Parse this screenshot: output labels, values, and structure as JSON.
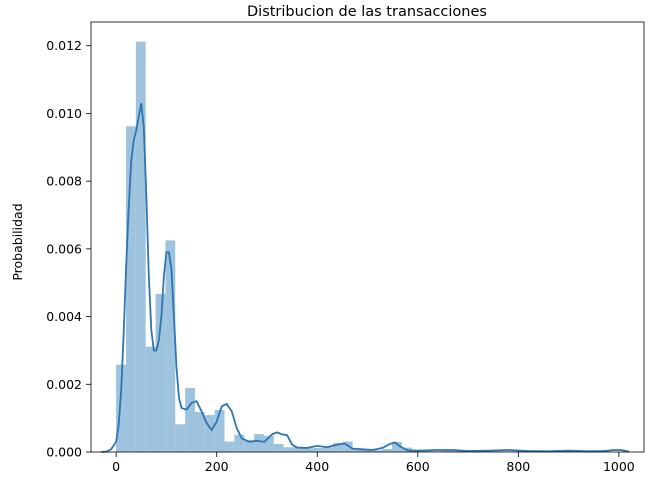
{
  "chart_data": {
    "type": "histogram_with_kde",
    "title": "Distribucion de las transacciones",
    "xlabel": "",
    "ylabel": "Probabilidad",
    "xlim": [
      -50,
      1050
    ],
    "ylim": [
      0,
      0.0127
    ],
    "xticks": [
      0,
      200,
      400,
      600,
      800,
      1000
    ],
    "xtick_labels": [
      "0",
      "200",
      "400",
      "600",
      "800",
      "1000"
    ],
    "yticks": [
      0,
      0.002,
      0.004,
      0.006,
      0.008,
      0.01,
      0.012
    ],
    "ytick_labels": [
      "0.000",
      "0.002",
      "0.004",
      "0.006",
      "0.008",
      "0.010",
      "0.012"
    ],
    "bin_width": 19.6,
    "bin_start": 0,
    "bar_values": [
      0.00258,
      0.00962,
      0.01212,
      0.00311,
      0.00467,
      0.00625,
      0.00082,
      0.00189,
      0.00118,
      0.00109,
      0.00124,
      0.00031,
      0.00051,
      0.00035,
      0.00053,
      0.00048,
      0.00024,
      0.00014,
      0.00016,
      0.00011,
      0.00012,
      0.00014,
      0.00026,
      0.00031,
      9e-05,
      7e-05,
      5e-05,
      9e-05,
      0.0003,
      0.00013,
      4e-05,
      3e-05,
      2e-05,
      4e-05,
      3e-05,
      2e-05,
      2e-05,
      3e-05,
      2e-05,
      2e-05,
      2e-05,
      1e-05,
      1e-05,
      2e-05,
      1e-05,
      2e-05,
      1e-05,
      1e-05,
      1e-05,
      2e-05
    ],
    "kde_points": [
      [
        -30,
        0.0
      ],
      [
        -20,
        1e-05
      ],
      [
        -10,
        8e-05
      ],
      [
        0,
        0.0003
      ],
      [
        5,
        0.0008
      ],
      [
        10,
        0.0018
      ],
      [
        15,
        0.0035
      ],
      [
        20,
        0.0055
      ],
      [
        25,
        0.0072
      ],
      [
        30,
        0.0086
      ],
      [
        35,
        0.0092
      ],
      [
        40,
        0.0095
      ],
      [
        45,
        0.0099
      ],
      [
        50,
        0.0103
      ],
      [
        55,
        0.0096
      ],
      [
        60,
        0.0076
      ],
      [
        65,
        0.0052
      ],
      [
        70,
        0.0036
      ],
      [
        75,
        0.003
      ],
      [
        80,
        0.003
      ],
      [
        85,
        0.0033
      ],
      [
        90,
        0.004
      ],
      [
        95,
        0.0052
      ],
      [
        100,
        0.0059
      ],
      [
        105,
        0.0059
      ],
      [
        110,
        0.0054
      ],
      [
        115,
        0.004
      ],
      [
        120,
        0.0025
      ],
      [
        125,
        0.0016
      ],
      [
        130,
        0.0013
      ],
      [
        140,
        0.00125
      ],
      [
        150,
        0.00145
      ],
      [
        160,
        0.0015
      ],
      [
        170,
        0.0012
      ],
      [
        180,
        0.00085
      ],
      [
        190,
        0.00065
      ],
      [
        200,
        0.0009
      ],
      [
        210,
        0.00135
      ],
      [
        220,
        0.00142
      ],
      [
        230,
        0.0012
      ],
      [
        240,
        0.0007
      ],
      [
        250,
        0.0004
      ],
      [
        265,
        0.0003
      ],
      [
        280,
        0.00033
      ],
      [
        295,
        0.0003
      ],
      [
        310,
        0.00052
      ],
      [
        320,
        0.00058
      ],
      [
        330,
        0.00052
      ],
      [
        340,
        0.0005
      ],
      [
        350,
        0.00022
      ],
      [
        360,
        0.00013
      ],
      [
        380,
        0.00012
      ],
      [
        400,
        0.00018
      ],
      [
        420,
        0.00014
      ],
      [
        440,
        0.00022
      ],
      [
        455,
        0.00025
      ],
      [
        470,
        0.0001
      ],
      [
        490,
        8e-05
      ],
      [
        510,
        6e-05
      ],
      [
        530,
        0.00012
      ],
      [
        545,
        0.00024
      ],
      [
        555,
        0.00028
      ],
      [
        565,
        0.00016
      ],
      [
        580,
        5e-05
      ],
      [
        600,
        4e-05
      ],
      [
        640,
        6e-05
      ],
      [
        670,
        6e-05
      ],
      [
        700,
        3e-05
      ],
      [
        740,
        4e-05
      ],
      [
        780,
        6e-05
      ],
      [
        820,
        3e-05
      ],
      [
        860,
        2e-05
      ],
      [
        900,
        4e-05
      ],
      [
        940,
        2e-05
      ],
      [
        970,
        3e-05
      ],
      [
        990,
        6e-05
      ],
      [
        1005,
        6e-05
      ],
      [
        1020,
        1e-05
      ]
    ],
    "bar_color": "#9ec3de",
    "line_color": "#2e75b1",
    "grid": false
  }
}
